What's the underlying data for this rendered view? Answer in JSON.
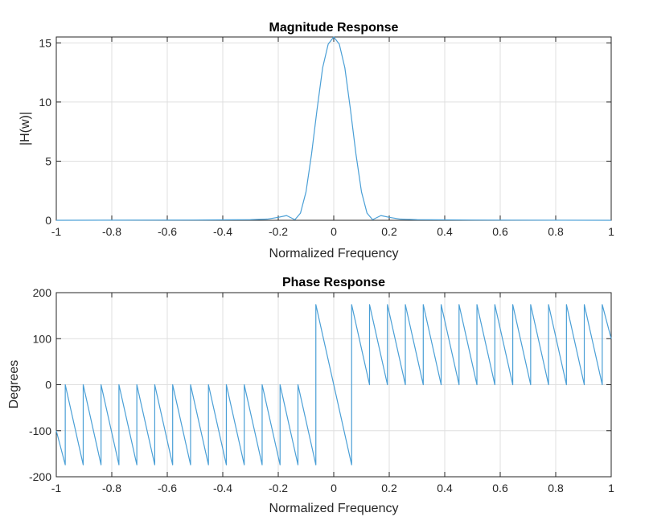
{
  "chart_data": [
    {
      "type": "line",
      "title": "Magnitude Response",
      "xlabel": "Normalized Frequency",
      "ylabel": "|H(w)|",
      "xlim": [
        -1,
        1
      ],
      "ylim": [
        0,
        15.5
      ],
      "xticks": [
        "-1",
        "-0.8",
        "-0.6",
        "-0.4",
        "-0.2",
        "0",
        "0.2",
        "0.4",
        "0.6",
        "0.8",
        "1"
      ],
      "yticks": [
        "0",
        "5",
        "10",
        "15"
      ],
      "grid": true,
      "series": [
        {
          "color": "#4a9fd6",
          "x": [
            -1,
            -0.5,
            -0.3,
            -0.24,
            -0.2,
            -0.17,
            -0.14,
            -0.12,
            -0.1,
            -0.08,
            -0.06,
            -0.04,
            -0.02,
            0,
            0.02,
            0.04,
            0.06,
            0.08,
            0.1,
            0.12,
            0.14,
            0.17,
            0.2,
            0.24,
            0.3,
            0.5,
            1
          ],
          "y": [
            0,
            0.02,
            0.05,
            0.1,
            0.25,
            0.4,
            0.05,
            0.6,
            2.4,
            5.6,
            9.4,
            12.9,
            14.9,
            15.5,
            14.9,
            12.9,
            9.4,
            5.6,
            2.4,
            0.6,
            0.05,
            0.4,
            0.25,
            0.1,
            0.05,
            0.02,
            0
          ]
        }
      ]
    },
    {
      "type": "line",
      "title": "Phase Response",
      "xlabel": "Normalized Frequency",
      "ylabel": "Degrees",
      "xlim": [
        -1,
        1
      ],
      "ylim": [
        -200,
        200
      ],
      "xticks": [
        "-1",
        "-0.8",
        "-0.6",
        "-0.4",
        "-0.2",
        "0",
        "0.2",
        "0.4",
        "0.6",
        "0.8",
        "1"
      ],
      "yticks": [
        "-200",
        "-100",
        "0",
        "100",
        "200"
      ],
      "grid": true,
      "series": [
        {
          "color": "#4a9fd6",
          "x": [
            -1,
            -0.9677,
            -0.9677,
            -0.903,
            -0.903,
            -0.8387,
            -0.8387,
            -0.7742,
            -0.7742,
            -0.7097,
            -0.7097,
            -0.6452,
            -0.6452,
            -0.5806,
            -0.5806,
            -0.5161,
            -0.5161,
            -0.4516,
            -0.4516,
            -0.3871,
            -0.3871,
            -0.3226,
            -0.3226,
            -0.2581,
            -0.2581,
            -0.1935,
            -0.1935,
            -0.129,
            -0.129,
            -0.0645,
            -0.0645,
            0.0645,
            0.0645,
            0.129,
            0.129,
            0.1935,
            0.1935,
            0.2581,
            0.2581,
            0.3226,
            0.3226,
            0.3871,
            0.3871,
            0.4516,
            0.4516,
            0.5161,
            0.5161,
            0.5806,
            0.5806,
            0.6452,
            0.6452,
            0.7097,
            0.7097,
            0.7742,
            0.7742,
            0.8387,
            0.8387,
            0.903,
            0.903,
            0.9677,
            0.9677,
            1
          ],
          "y": [
            -100,
            -174,
            0,
            -174,
            0,
            -174,
            0,
            -174,
            0,
            -174,
            0,
            -174,
            0,
            -174,
            0,
            -174,
            0,
            -174,
            0,
            -174,
            0,
            -174,
            0,
            -174,
            0,
            -174,
            0,
            -174,
            0,
            -174,
            174,
            -174,
            174,
            0,
            174,
            0,
            174,
            0,
            174,
            0,
            174,
            0,
            174,
            0,
            174,
            0,
            174,
            0,
            174,
            0,
            174,
            0,
            174,
            0,
            174,
            0,
            174,
            0,
            174,
            0,
            174,
            100
          ]
        }
      ]
    }
  ]
}
